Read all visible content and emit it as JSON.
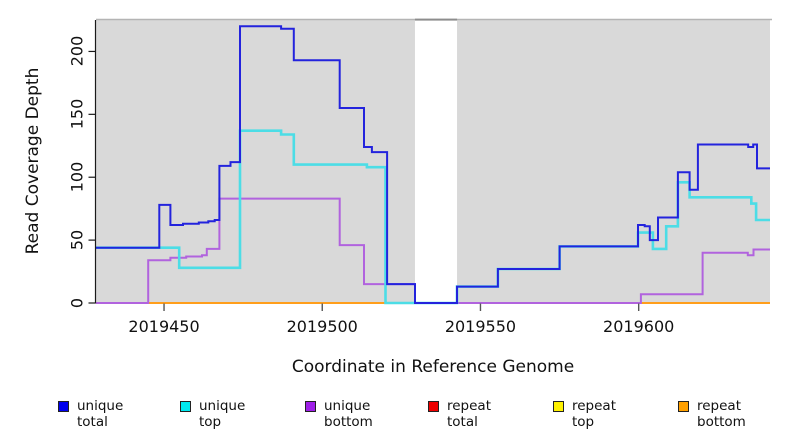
{
  "chart_data": {
    "type": "line",
    "subtype": "step-coverage",
    "title": "",
    "xlabel": "Coordinate in Reference Genome",
    "ylabel": "Read Coverage Depth",
    "xlim": [
      2019428.5,
      2019641.5
    ],
    "ylim": [
      0,
      225
    ],
    "x_ticks": [
      2019450,
      2019500,
      2019550,
      2019600
    ],
    "y_ticks": [
      0,
      50,
      100,
      150,
      200
    ],
    "grid": false,
    "legend_position": "bottom",
    "panel_bg": "#d9d9d9",
    "masked_region": {
      "x_start": 2019529.3,
      "x_end": 2019542.6,
      "color": "#ffffff"
    },
    "top_border_color": "#b4b4b4",
    "top_border_over_mask_color": "#8d8d8d",
    "axis_color": "#1a1a1a",
    "tick_color": "#555555",
    "draw_order": [
      "repeat total",
      "repeat top",
      "repeat bottom",
      "unique bottom",
      "unique top",
      "unique total"
    ],
    "legend_item_x": [
      58,
      180,
      305,
      428,
      553,
      678
    ],
    "series": [
      {
        "name": "unique total",
        "legend_color": "#0000ee",
        "line_color": "#2323dd",
        "line_width": 2,
        "points": [
          [
            2019428.5,
            44
          ],
          [
            2019448.5,
            78
          ],
          [
            2019452,
            62
          ],
          [
            2019456,
            63
          ],
          [
            2019461,
            64
          ],
          [
            2019464,
            65
          ],
          [
            2019466,
            66
          ],
          [
            2019467.5,
            109
          ],
          [
            2019471,
            112
          ],
          [
            2019474,
            220
          ],
          [
            2019487,
            218
          ],
          [
            2019491,
            193
          ],
          [
            2019505.5,
            155
          ],
          [
            2019513.2,
            124
          ],
          [
            2019515.7,
            120
          ],
          [
            2019520.5,
            15
          ],
          [
            2019529.3,
            0
          ],
          [
            2019542.6,
            13
          ],
          [
            2019555.5,
            27
          ],
          [
            2019575,
            45
          ],
          [
            2019599.8,
            62
          ],
          [
            2019601.9,
            61
          ],
          [
            2019603.5,
            50
          ],
          [
            2019606.1,
            68
          ],
          [
            2019612.4,
            104
          ],
          [
            2019616.1,
            90
          ],
          [
            2019618.7,
            126
          ],
          [
            2019634.6,
            124
          ],
          [
            2019636.2,
            126
          ],
          [
            2019637.4,
            107
          ],
          [
            2019641.5,
            107
          ]
        ]
      },
      {
        "name": "unique top",
        "legend_color": "#00eaf0",
        "line_color": "#4cdde6",
        "line_width": 2.6,
        "points": [
          [
            2019428.5,
            44
          ],
          [
            2019454.8,
            28
          ],
          [
            2019474,
            137
          ],
          [
            2019487,
            134
          ],
          [
            2019491,
            110
          ],
          [
            2019514.1,
            108
          ],
          [
            2019520,
            0
          ],
          [
            2019542.6,
            13
          ],
          [
            2019555.5,
            27
          ],
          [
            2019575,
            45
          ],
          [
            2019599.8,
            56
          ],
          [
            2019604.5,
            43
          ],
          [
            2019608.7,
            61
          ],
          [
            2019612.4,
            96
          ],
          [
            2019616.1,
            84
          ],
          [
            2019635.6,
            79
          ],
          [
            2019637.1,
            66
          ],
          [
            2019641.5,
            66
          ]
        ]
      },
      {
        "name": "unique bottom",
        "legend_color": "#9f1fe8",
        "line_color": "#b163de",
        "line_width": 2,
        "points": [
          [
            2019428.5,
            0
          ],
          [
            2019445,
            34
          ],
          [
            2019452,
            36
          ],
          [
            2019457,
            37
          ],
          [
            2019462,
            38
          ],
          [
            2019463.5,
            43
          ],
          [
            2019467.5,
            83
          ],
          [
            2019505.5,
            46
          ],
          [
            2019513.2,
            15
          ],
          [
            2019529.3,
            0
          ],
          [
            2019600.7,
            7
          ],
          [
            2019620.2,
            40
          ],
          [
            2019634.5,
            38
          ],
          [
            2019636.3,
            42.5
          ],
          [
            2019641.5,
            42.5
          ]
        ]
      },
      {
        "name": "repeat total",
        "legend_color": "#ee0000",
        "line_color": "#e22222",
        "line_width": 2,
        "points": [
          [
            2019428.5,
            0
          ],
          [
            2019641.5,
            0
          ]
        ]
      },
      {
        "name": "repeat top",
        "legend_color": "#fff200",
        "line_color": "#ffea00",
        "line_width": 2,
        "points": [
          [
            2019428.5,
            0
          ],
          [
            2019641.5,
            0
          ]
        ]
      },
      {
        "name": "repeat bottom",
        "legend_color": "#ffa000",
        "line_color": "#ff9e1b",
        "line_width": 2,
        "points": [
          [
            2019428.5,
            0
          ],
          [
            2019641.5,
            0
          ]
        ]
      }
    ]
  }
}
